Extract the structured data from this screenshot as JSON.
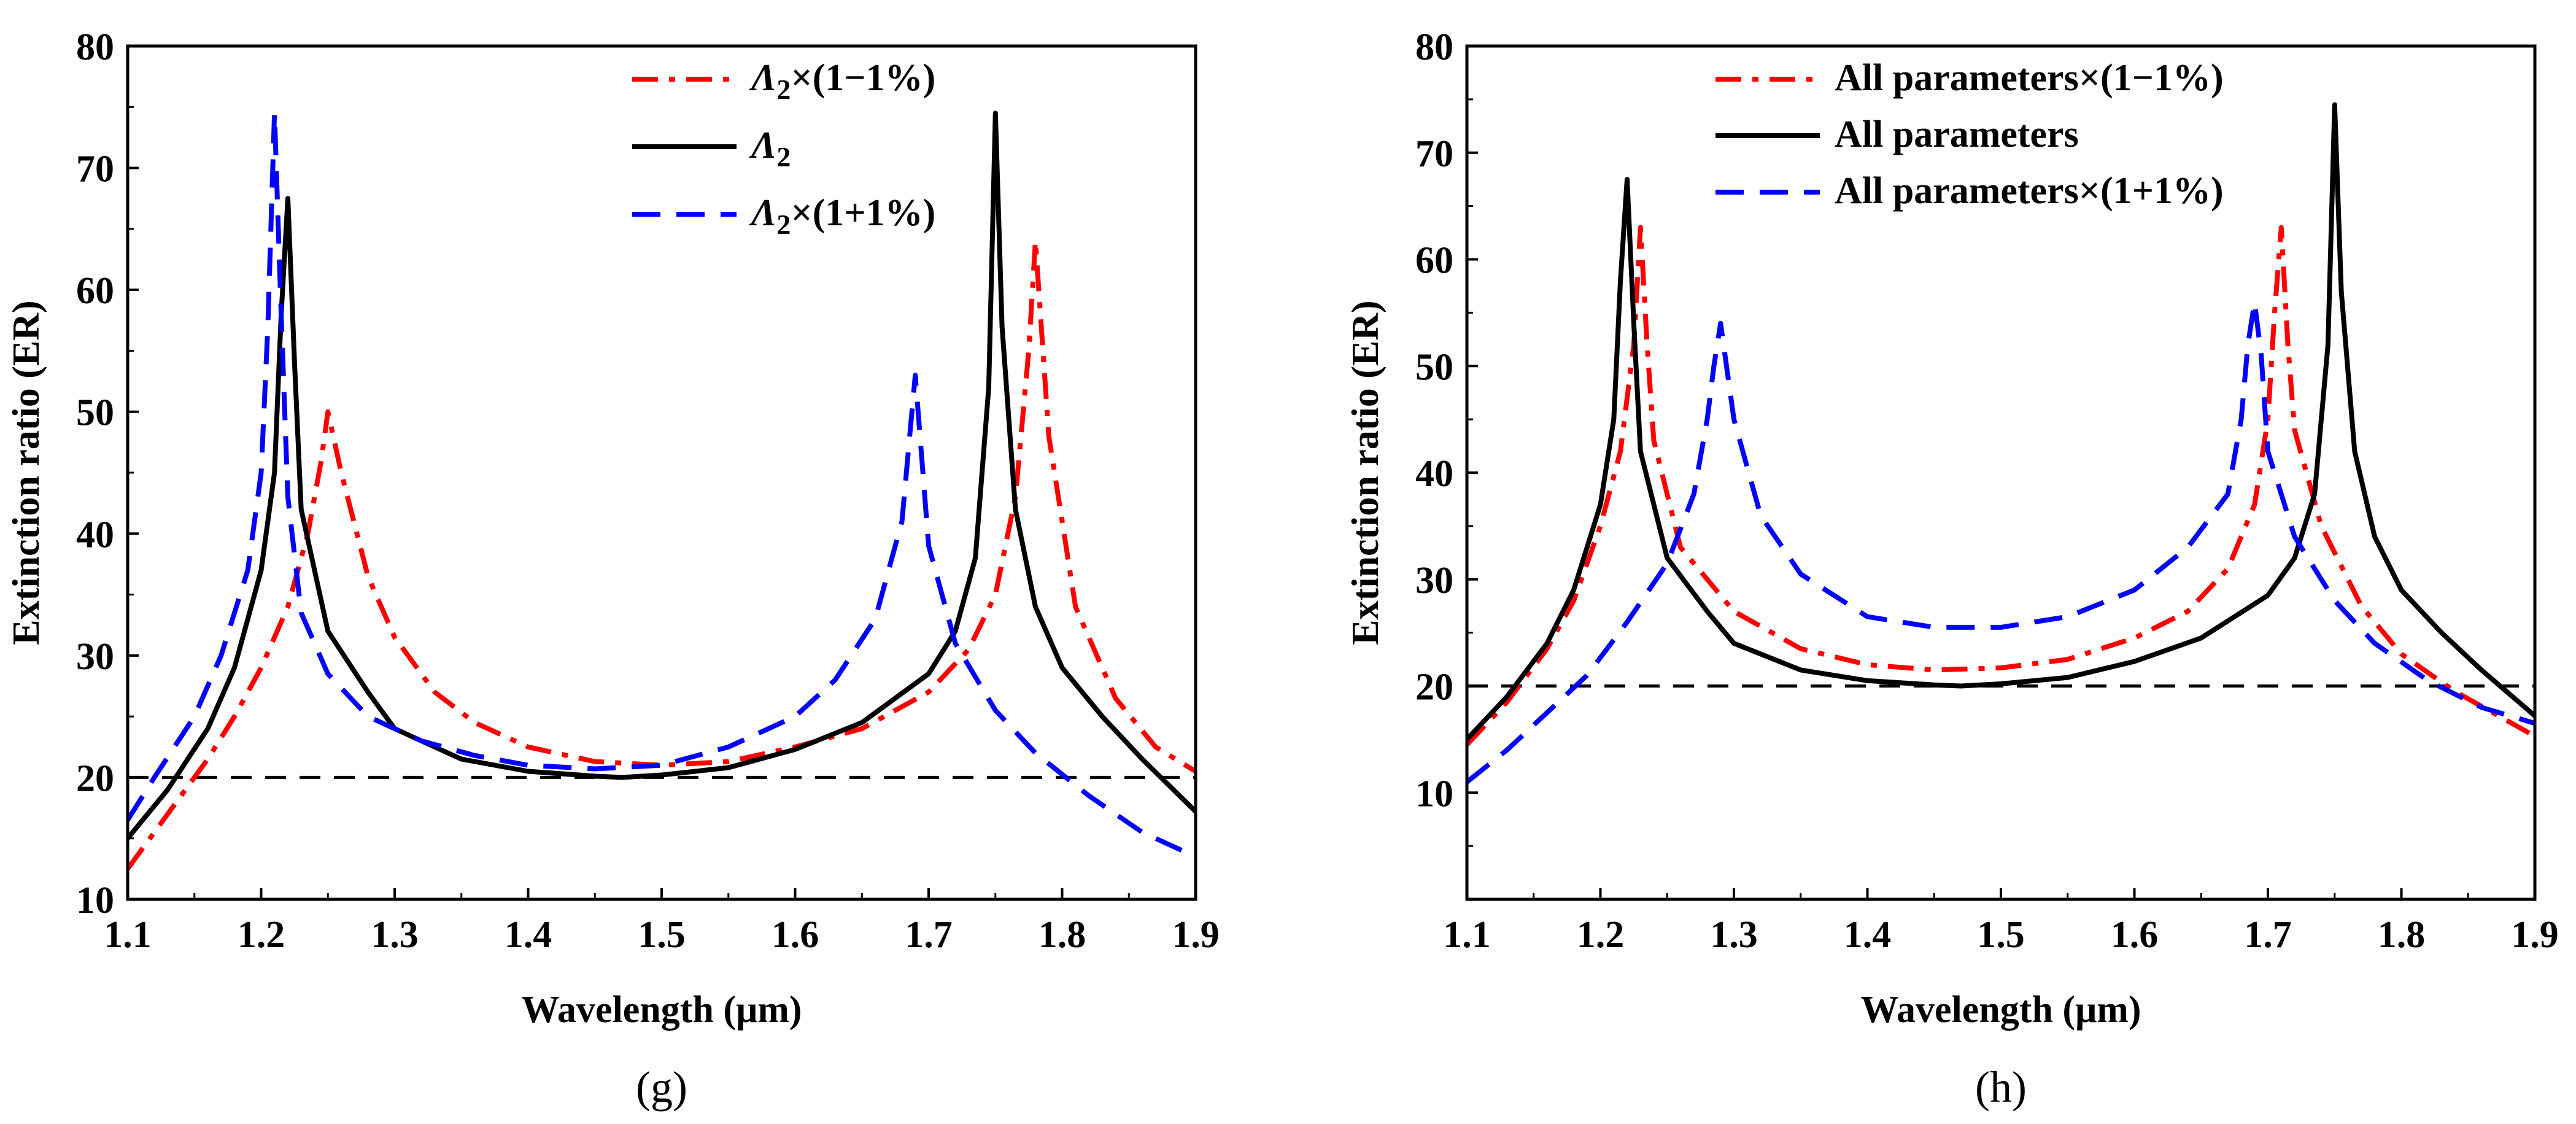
{
  "chart_data": [
    {
      "type": "line",
      "panel_label": "(g)",
      "xlabel": "Wavelength (μm)",
      "ylabel": "Extinction ratio (ER)",
      "xlim": [
        1.1,
        1.9
      ],
      "ylim": [
        10,
        80
      ],
      "xticks": [
        1.1,
        1.2,
        1.3,
        1.4,
        1.5,
        1.6,
        1.7,
        1.8,
        1.9
      ],
      "yticks": [
        10,
        20,
        30,
        40,
        50,
        60,
        70,
        80
      ],
      "xtick_labels": [
        "1.1",
        "1.2",
        "1.3",
        "1.4",
        "1.5",
        "1.6",
        "1.7",
        "1.8",
        "1.9"
      ],
      "ytick_labels": [
        "10",
        "20",
        "30",
        "40",
        "50",
        "60",
        "70",
        "80"
      ],
      "legend_position": "top-right",
      "reference_line": {
        "y": 20,
        "style": "dashed",
        "color": "#000000"
      },
      "series": [
        {
          "name": "Λ2×(1−1%)",
          "legend_symbol": "Λ",
          "legend_subscript": "2",
          "legend_suffix": "×(1−1%)",
          "color": "#ff0000",
          "style": "dashdot",
          "x": [
            1.1,
            1.12,
            1.14,
            1.16,
            1.18,
            1.2,
            1.22,
            1.235,
            1.245,
            1.25,
            1.26,
            1.28,
            1.3,
            1.33,
            1.36,
            1.4,
            1.45,
            1.5,
            1.55,
            1.6,
            1.65,
            1.7,
            1.73,
            1.75,
            1.765,
            1.775,
            1.78,
            1.79,
            1.81,
            1.84,
            1.87,
            1.9
          ],
          "y": [
            12.5,
            15.5,
            18.5,
            21.5,
            25,
            29,
            34,
            40,
            46,
            50,
            45,
            36.5,
            31.5,
            27,
            24.5,
            22.5,
            21.3,
            21,
            21.3,
            22.5,
            24,
            27,
            30.5,
            35,
            43,
            55,
            64,
            48,
            34,
            26.5,
            22.5,
            20.5
          ]
        },
        {
          "name": "Λ2",
          "legend_symbol": "Λ",
          "legend_subscript": "2",
          "legend_suffix": "",
          "color": "#000000",
          "style": "solid",
          "x": [
            1.1,
            1.13,
            1.16,
            1.18,
            1.2,
            1.21,
            1.215,
            1.22,
            1.225,
            1.23,
            1.25,
            1.28,
            1.3,
            1.35,
            1.4,
            1.45,
            1.47,
            1.5,
            1.55,
            1.6,
            1.65,
            1.7,
            1.72,
            1.735,
            1.745,
            1.75,
            1.755,
            1.765,
            1.78,
            1.8,
            1.83,
            1.86,
            1.9
          ],
          "y": [
            15,
            19,
            24,
            29,
            37,
            45,
            58,
            67.5,
            54,
            42,
            32,
            27,
            24,
            21.5,
            20.5,
            20.1,
            20,
            20.2,
            20.8,
            22.3,
            24.5,
            28.5,
            32,
            38,
            52,
            74.5,
            57,
            42,
            34,
            29,
            25,
            21.5,
            17.2
          ]
        },
        {
          "name": "Λ2×(1+1%)",
          "legend_symbol": "Λ",
          "legend_subscript": "2",
          "legend_suffix": "×(1+1%)",
          "color": "#0000ff",
          "style": "dashed",
          "x": [
            1.1,
            1.12,
            1.15,
            1.17,
            1.19,
            1.2,
            1.205,
            1.21,
            1.215,
            1.22,
            1.23,
            1.25,
            1.28,
            1.32,
            1.36,
            1.4,
            1.45,
            1.5,
            1.55,
            1.6,
            1.63,
            1.66,
            1.68,
            1.69,
            1.695,
            1.7,
            1.72,
            1.75,
            1.78,
            1.82,
            1.86,
            1.9
          ],
          "y": [
            16.5,
            20,
            25,
            30,
            37,
            45,
            57,
            74.5,
            58,
            43,
            33.5,
            28.5,
            25,
            23,
            21.8,
            21,
            20.7,
            21,
            22.5,
            25,
            28,
            33,
            41,
            53,
            46,
            39,
            31,
            25.5,
            22,
            18.5,
            15.5,
            13.5
          ]
        }
      ]
    },
    {
      "type": "line",
      "panel_label": "(h)",
      "xlabel": "Wavelength (μm)",
      "ylabel": "Extinction ratio (ER)",
      "xlim": [
        1.1,
        1.9
      ],
      "ylim": [
        0,
        80
      ],
      "xticks": [
        1.1,
        1.2,
        1.3,
        1.4,
        1.5,
        1.6,
        1.7,
        1.8,
        1.9
      ],
      "yticks": [
        10,
        20,
        30,
        40,
        50,
        60,
        70,
        80
      ],
      "xtick_labels": [
        "1.1",
        "1.2",
        "1.3",
        "1.4",
        "1.5",
        "1.6",
        "1.7",
        "1.8",
        "1.9"
      ],
      "ytick_labels": [
        "10",
        "20",
        "30",
        "40",
        "50",
        "60",
        "70",
        "80"
      ],
      "legend_position": "top-right",
      "reference_line": {
        "y": 20,
        "style": "dashed",
        "color": "#000000"
      },
      "series": [
        {
          "name": "All parameters×(1−1%)",
          "legend_symbol": "",
          "legend_subscript": "",
          "legend_suffix": "All parameters×(1−1%)",
          "color": "#ff0000",
          "style": "dashdot",
          "x": [
            1.1,
            1.13,
            1.16,
            1.18,
            1.2,
            1.215,
            1.225,
            1.23,
            1.235,
            1.24,
            1.26,
            1.3,
            1.35,
            1.4,
            1.45,
            1.5,
            1.55,
            1.6,
            1.64,
            1.67,
            1.69,
            1.7,
            1.705,
            1.71,
            1.715,
            1.72,
            1.74,
            1.77,
            1.8,
            1.84,
            1.9
          ],
          "y": [
            14.5,
            18.5,
            23.5,
            28,
            35,
            42,
            52,
            63,
            52,
            43,
            33,
            27,
            23.5,
            22,
            21.5,
            21.7,
            22.5,
            24.5,
            27,
            31,
            37,
            45,
            55,
            63,
            52,
            44,
            35,
            27.5,
            23,
            19.5,
            15.3
          ]
        },
        {
          "name": "All parameters",
          "legend_symbol": "",
          "legend_subscript": "",
          "legend_suffix": "All parameters",
          "color": "#000000",
          "style": "solid",
          "x": [
            1.1,
            1.13,
            1.16,
            1.18,
            1.2,
            1.21,
            1.215,
            1.22,
            1.225,
            1.23,
            1.25,
            1.28,
            1.3,
            1.35,
            1.4,
            1.45,
            1.47,
            1.5,
            1.55,
            1.6,
            1.65,
            1.7,
            1.72,
            1.735,
            1.745,
            1.75,
            1.755,
            1.765,
            1.78,
            1.8,
            1.83,
            1.86,
            1.9
          ],
          "y": [
            15,
            19,
            24,
            29,
            37,
            45,
            58,
            67.5,
            54,
            42,
            32,
            27,
            24,
            21.5,
            20.5,
            20.1,
            20,
            20.2,
            20.8,
            22.3,
            24.5,
            28.5,
            32,
            38,
            52,
            74.5,
            57,
            42,
            34,
            29,
            25,
            21.5,
            17.2
          ]
        },
        {
          "name": "All parameters×(1+1%)",
          "legend_symbol": "",
          "legend_subscript": "",
          "legend_suffix": "All parameters×(1+1%)",
          "color": "#0000ff",
          "style": "dashed",
          "x": [
            1.1,
            1.13,
            1.16,
            1.19,
            1.22,
            1.25,
            1.27,
            1.28,
            1.285,
            1.29,
            1.3,
            1.32,
            1.35,
            1.4,
            1.45,
            1.5,
            1.55,
            1.6,
            1.64,
            1.67,
            1.68,
            1.685,
            1.69,
            1.695,
            1.7,
            1.72,
            1.75,
            1.78,
            1.82,
            1.86,
            1.9
          ],
          "y": [
            11,
            14,
            17.5,
            21,
            26,
            31.5,
            38,
            45,
            50,
            54,
            45,
            36,
            30.5,
            26.5,
            25.5,
            25.5,
            26.5,
            29,
            33,
            38,
            45,
            52,
            56,
            51,
            42,
            34,
            28,
            24,
            20.5,
            18,
            16.5
          ]
        }
      ]
    }
  ]
}
